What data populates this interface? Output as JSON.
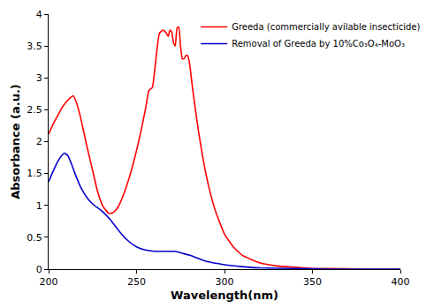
{
  "chart_data": {
    "type": "line",
    "x_label": "Wavelength(nm)",
    "y_label": "Absorbance (a.u.)",
    "xlim": [
      200,
      400
    ],
    "xticks": [
      200,
      250,
      300,
      350,
      400
    ],
    "ylim": [
      0,
      4
    ],
    "yticks": [
      0,
      0.5,
      1,
      1.5,
      2,
      2.5,
      3,
      3.5,
      4
    ],
    "grid": false,
    "legend": "top right",
    "series": [
      {
        "name": "Greeda (commercially avilable insecticide)",
        "color": "#ff0000",
        "x": [
          200,
          203,
          206,
          208,
          210,
          212,
          214,
          216,
          218,
          220,
          222,
          225,
          228,
          231,
          234,
          236,
          238,
          240,
          243,
          246,
          249,
          252,
          255,
          257,
          259,
          261,
          263,
          265,
          267,
          268,
          269,
          270,
          271,
          272,
          273,
          274,
          275,
          276,
          277,
          278,
          279,
          280,
          282,
          285,
          288,
          291,
          295,
          300,
          305,
          310,
          320,
          330,
          340,
          350,
          360,
          380,
          400
        ],
        "values": [
          2.12,
          2.3,
          2.45,
          2.55,
          2.62,
          2.68,
          2.72,
          2.6,
          2.4,
          2.15,
          1.9,
          1.55,
          1.2,
          0.98,
          0.88,
          0.88,
          0.92,
          1.0,
          1.2,
          1.45,
          1.75,
          2.1,
          2.5,
          2.8,
          2.85,
          3.3,
          3.7,
          3.75,
          3.7,
          3.65,
          3.75,
          3.72,
          3.55,
          3.5,
          3.78,
          3.8,
          3.5,
          3.3,
          3.3,
          3.35,
          3.35,
          3.25,
          2.8,
          2.2,
          1.7,
          1.3,
          0.9,
          0.55,
          0.35,
          0.22,
          0.1,
          0.05,
          0.03,
          0.01,
          0.01,
          0,
          0
        ]
      },
      {
        "name": "Removal of Greeda by 10%Co₃O₄-MoO₃",
        "color": "#0000cc",
        "x": [
          200,
          202,
          205,
          208,
          209,
          211,
          213,
          215,
          218,
          220,
          223,
          226,
          230,
          235,
          240,
          245,
          250,
          255,
          260,
          265,
          268,
          272,
          276,
          280,
          285,
          290,
          300,
          310,
          320,
          340,
          360,
          400
        ],
        "values": [
          1.37,
          1.5,
          1.68,
          1.8,
          1.82,
          1.78,
          1.65,
          1.5,
          1.3,
          1.2,
          1.08,
          1.0,
          0.92,
          0.78,
          0.6,
          0.45,
          0.35,
          0.3,
          0.28,
          0.28,
          0.28,
          0.28,
          0.25,
          0.22,
          0.17,
          0.12,
          0.07,
          0.04,
          0.02,
          0.01,
          0,
          0
        ]
      }
    ]
  }
}
